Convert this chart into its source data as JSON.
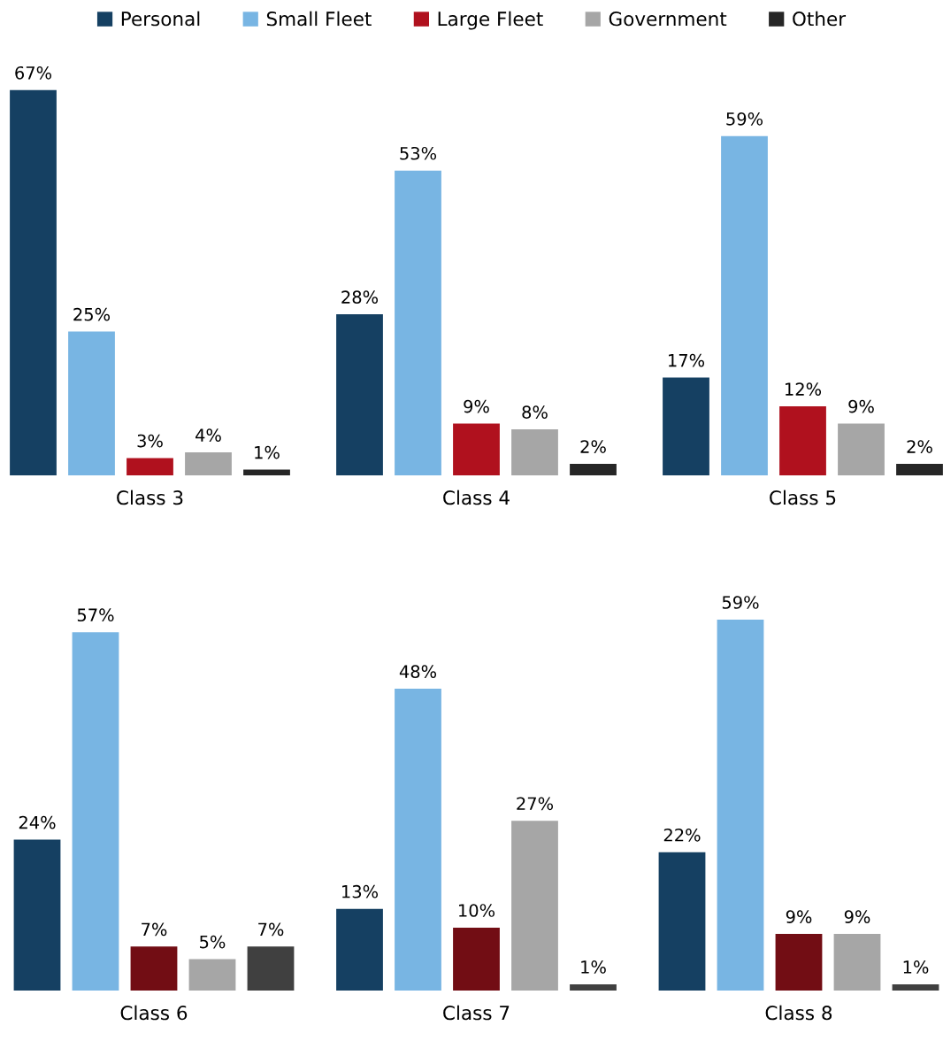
{
  "chart_data": [
    {
      "type": "bar",
      "categories": [
        "Class 3",
        "Class 4",
        "Class 5"
      ],
      "legend": "top",
      "grid": false,
      "tick_labels": "x",
      "series": [
        {
          "name": "Personal",
          "color": "#154062",
          "values": [
            67,
            28,
            17
          ],
          "value_labels": [
            "67%",
            "28%",
            "17%"
          ]
        },
        {
          "name": "Small Fleet",
          "color": "#78b5e3",
          "values": [
            25,
            53,
            59
          ],
          "value_labels": [
            "25%",
            "53%",
            "59%"
          ]
        },
        {
          "name": "Large Fleet",
          "color": "#b0111e",
          "values": [
            3,
            9,
            12
          ],
          "value_labels": [
            "3%",
            "9%",
            "12%"
          ]
        },
        {
          "name": "Government",
          "color": "#a6a6a6",
          "values": [
            4,
            8,
            9
          ],
          "value_labels": [
            "4%",
            "8%",
            "9%"
          ]
        },
        {
          "name": "Other",
          "color": "#262626",
          "values": [
            1,
            2,
            2
          ],
          "value_labels": [
            "1%",
            "2%",
            "2%"
          ]
        }
      ]
    },
    {
      "type": "bar",
      "categories": [
        "Class 6",
        "Class 7",
        "Class 8"
      ],
      "grid": false,
      "tick_labels": "x",
      "series": [
        {
          "color": "#154062",
          "values": [
            24,
            13,
            22
          ],
          "value_labels": [
            "24%",
            "13%",
            "22%"
          ]
        },
        {
          "color": "#78b5e3",
          "values": [
            57,
            48,
            59
          ],
          "value_labels": [
            "57%",
            "48%",
            "59%"
          ]
        },
        {
          "color": "#720d14",
          "values": [
            7,
            10,
            9
          ],
          "value_labels": [
            "7%",
            "10%",
            "9%"
          ]
        },
        {
          "color": "#a6a6a6",
          "values": [
            5,
            27,
            9
          ],
          "value_labels": [
            "5%",
            "27%",
            "9%"
          ]
        },
        {
          "color": "#404040",
          "values": [
            7,
            1,
            1
          ],
          "value_labels": [
            "7%",
            "1%",
            "1%"
          ]
        }
      ]
    }
  ]
}
